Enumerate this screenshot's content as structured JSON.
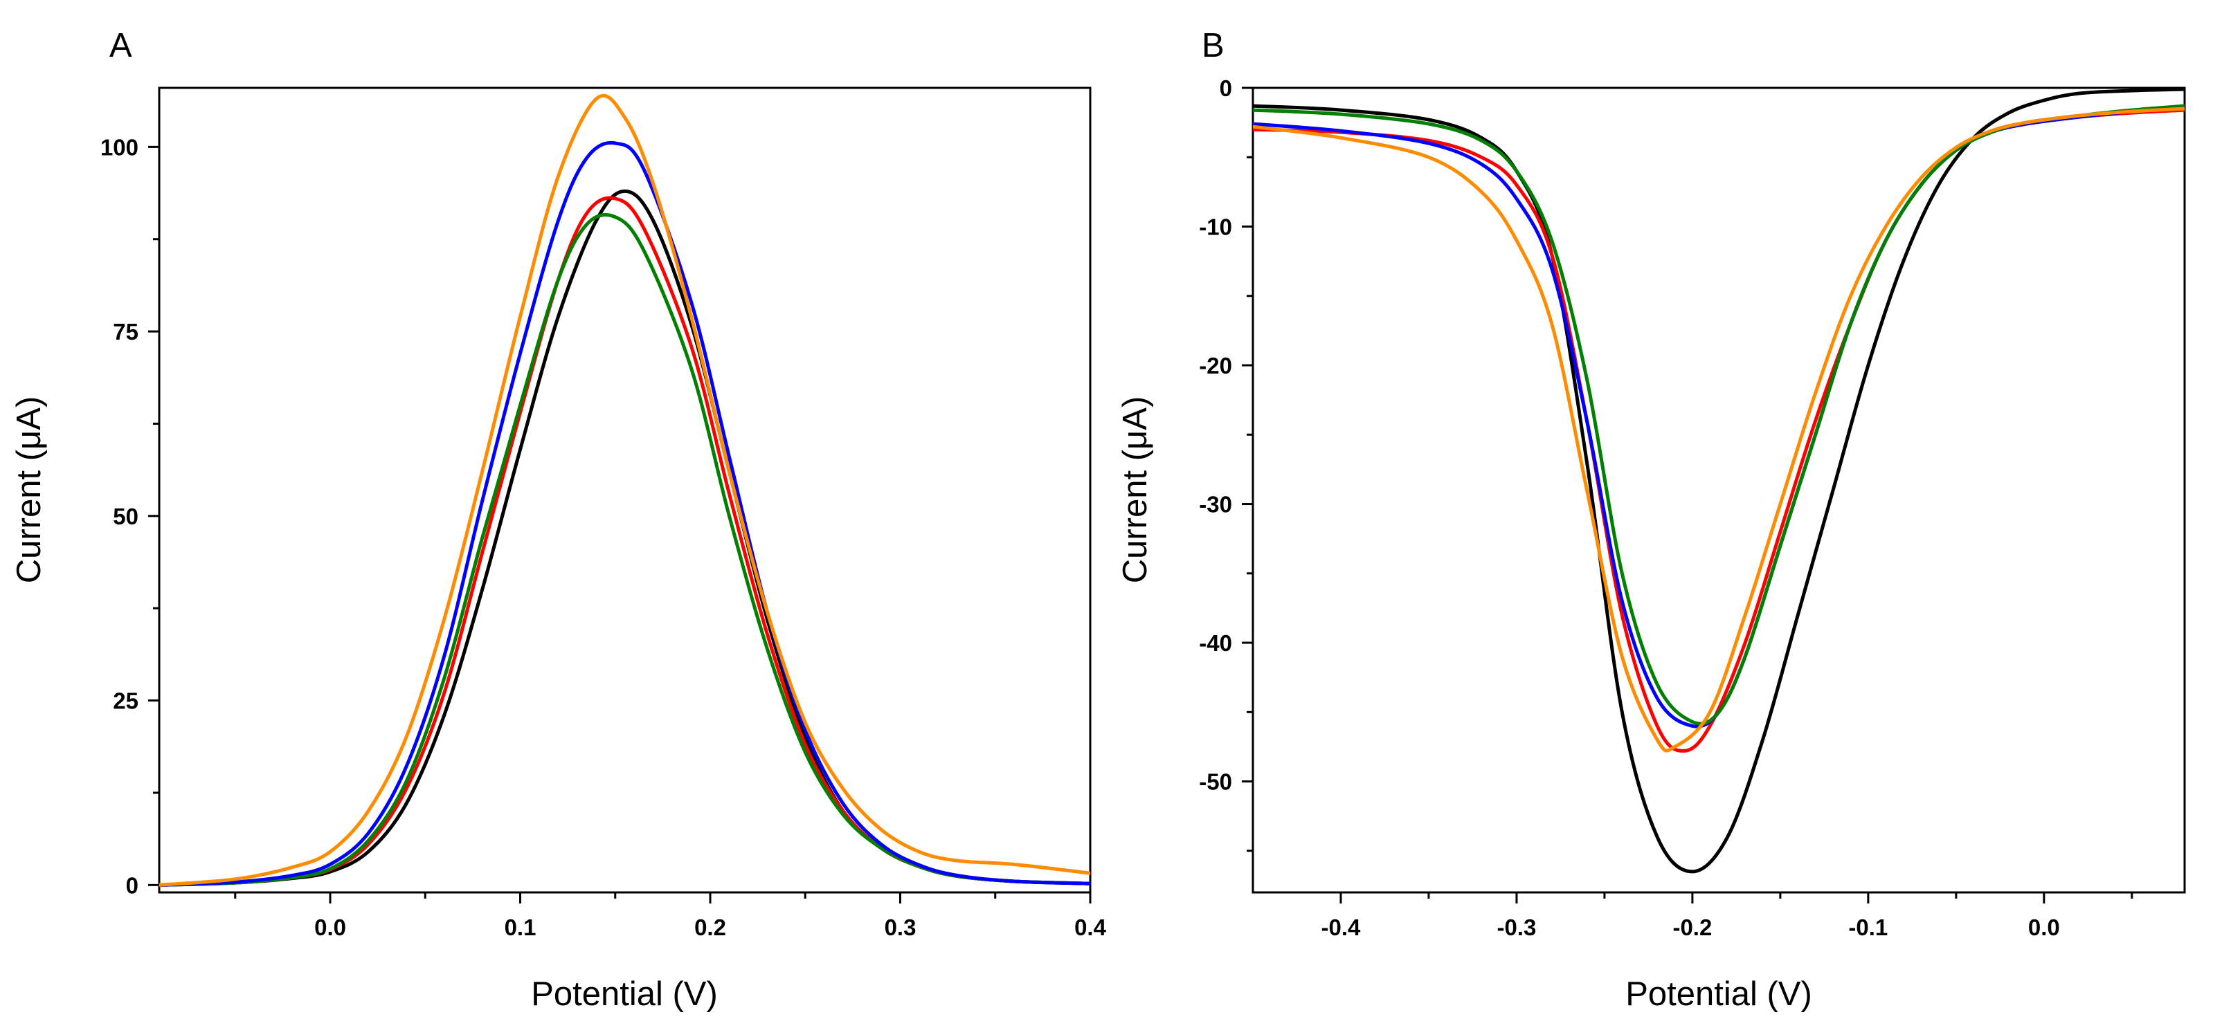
{
  "chart_data": [
    {
      "type": "line",
      "panel_label": "A",
      "xlabel": "Potential (V)",
      "ylabel": "Current (μA)",
      "xlim": [
        -0.09,
        0.4
      ],
      "ylim": [
        -1,
        108
      ],
      "xticks": [
        0.0,
        0.1,
        0.2,
        0.3,
        0.4
      ],
      "xtick_labels": [
        "0.0",
        "0.1",
        "0.2",
        "0.3",
        "0.4"
      ],
      "yticks": [
        0,
        25,
        50,
        75,
        100
      ],
      "ytick_labels": [
        "0",
        "25",
        "50",
        "75",
        "100"
      ],
      "grid": false,
      "series": [
        {
          "color": "#000000",
          "x": [
            -0.09,
            -0.05,
            -0.02,
            0.0,
            0.02,
            0.04,
            0.06,
            0.08,
            0.1,
            0.12,
            0.14,
            0.155,
            0.17,
            0.19,
            0.21,
            0.23,
            0.25,
            0.27,
            0.29,
            0.31,
            0.33,
            0.36,
            0.4
          ],
          "y": [
            0,
            0.3,
            0.9,
            1.8,
            4.5,
            11,
            23,
            40,
            59,
            77,
            90,
            94,
            90,
            76,
            56,
            36,
            20,
            10,
            5,
            2.5,
            1.2,
            0.5,
            0.2
          ]
        },
        {
          "color": "#ff0000",
          "x": [
            -0.09,
            -0.05,
            -0.02,
            0.0,
            0.02,
            0.04,
            0.06,
            0.08,
            0.1,
            0.12,
            0.135,
            0.15,
            0.165,
            0.19,
            0.21,
            0.23,
            0.25,
            0.27,
            0.29,
            0.31,
            0.33,
            0.36,
            0.4
          ],
          "y": [
            0,
            0.3,
            1,
            2.1,
            5.5,
            13,
            26,
            45,
            64,
            82,
            91,
            93,
            89,
            73,
            53,
            34,
            19,
            10,
            5,
            2.5,
            1.2,
            0.5,
            0.2
          ]
        },
        {
          "color": "#008000",
          "x": [
            -0.09,
            -0.05,
            -0.02,
            0.0,
            0.02,
            0.04,
            0.06,
            0.08,
            0.1,
            0.12,
            0.135,
            0.15,
            0.165,
            0.19,
            0.21,
            0.23,
            0.25,
            0.27,
            0.29,
            0.31,
            0.33,
            0.36,
            0.4
          ],
          "y": [
            0,
            0.3,
            1,
            2.2,
            6,
            14,
            28,
            47,
            65,
            82,
            89.5,
            90.5,
            86,
            70,
            50,
            32,
            18,
            9.5,
            5,
            2.5,
            1.2,
            0.5,
            0.2
          ]
        },
        {
          "color": "#0000ff",
          "x": [
            -0.09,
            -0.05,
            -0.02,
            0.0,
            0.02,
            0.04,
            0.06,
            0.08,
            0.1,
            0.12,
            0.135,
            0.15,
            0.165,
            0.19,
            0.21,
            0.23,
            0.25,
            0.27,
            0.29,
            0.31,
            0.33,
            0.36,
            0.4
          ],
          "y": [
            0,
            0.4,
            1.3,
            2.8,
            7,
            16,
            31,
            52,
            72,
            90,
            98.5,
            100.5,
            97,
            79,
            58,
            37,
            21,
            11,
            5.5,
            2.7,
            1.3,
            0.5,
            0.2
          ]
        },
        {
          "color": "#ff8c00",
          "x": [
            -0.09,
            -0.05,
            -0.02,
            0.0,
            0.02,
            0.04,
            0.06,
            0.08,
            0.1,
            0.12,
            0.14,
            0.155,
            0.17,
            0.19,
            0.21,
            0.23,
            0.25,
            0.27,
            0.29,
            0.31,
            0.33,
            0.36,
            0.4
          ],
          "y": [
            0,
            0.8,
            2.4,
            4.5,
            10,
            20,
            36,
            56,
            77,
            96,
            106.5,
            104,
            95,
            77,
            56,
            37,
            22,
            13,
            7.5,
            4.5,
            3.3,
            2.8,
            1.6
          ]
        }
      ]
    },
    {
      "type": "line",
      "panel_label": "B",
      "xlabel": "Potential (V)",
      "ylabel": "Current (μA)",
      "xlim": [
        -0.45,
        0.08
      ],
      "ylim": [
        -58,
        0
      ],
      "xticks": [
        -0.4,
        -0.3,
        -0.2,
        -0.1,
        0.0
      ],
      "xtick_labels": [
        "-0.4",
        "-0.3",
        "-0.2",
        "-0.1",
        "0.0"
      ],
      "yticks": [
        0,
        -10,
        -20,
        -30,
        -40,
        -50
      ],
      "ytick_labels": [
        "0",
        "-10",
        "-20",
        "-30",
        "-40",
        "-50"
      ],
      "grid": false,
      "series": [
        {
          "color": "#000000",
          "x": [
            -0.45,
            -0.4,
            -0.35,
            -0.32,
            -0.3,
            -0.28,
            -0.26,
            -0.24,
            -0.22,
            -0.2,
            -0.18,
            -0.16,
            -0.14,
            -0.12,
            -0.1,
            -0.08,
            -0.06,
            -0.04,
            -0.02,
            0.0,
            0.02,
            0.05,
            0.08
          ],
          "y": [
            -1.3,
            -1.6,
            -2.3,
            -3.6,
            -6,
            -12,
            -27,
            -45,
            -54,
            -56.5,
            -54,
            -47,
            -38,
            -29,
            -20,
            -12.5,
            -7,
            -3.6,
            -1.8,
            -0.9,
            -0.4,
            -0.2,
            -0.1
          ]
        },
        {
          "color": "#ff0000",
          "x": [
            -0.45,
            -0.4,
            -0.35,
            -0.32,
            -0.3,
            -0.28,
            -0.26,
            -0.24,
            -0.22,
            -0.205,
            -0.19,
            -0.17,
            -0.15,
            -0.13,
            -0.11,
            -0.09,
            -0.07,
            -0.05,
            -0.03,
            -0.01,
            0.02,
            0.05,
            0.08
          ],
          "y": [
            -3,
            -3.2,
            -3.8,
            -5,
            -7,
            -12,
            -24,
            -38,
            -46,
            -47.8,
            -46,
            -40,
            -32,
            -24,
            -17,
            -11,
            -7,
            -4.5,
            -3.2,
            -2.6,
            -2.1,
            -1.8,
            -1.6
          ]
        },
        {
          "color": "#0000ff",
          "x": [
            -0.45,
            -0.4,
            -0.35,
            -0.32,
            -0.3,
            -0.28,
            -0.26,
            -0.24,
            -0.22,
            -0.2,
            -0.185,
            -0.17,
            -0.15,
            -0.13,
            -0.11,
            -0.09,
            -0.07,
            -0.05,
            -0.03,
            -0.01,
            0.02,
            0.05,
            0.08
          ],
          "y": [
            -2.6,
            -3.1,
            -4,
            -5.5,
            -8,
            -13,
            -24,
            -37,
            -44,
            -46,
            -45,
            -41,
            -33,
            -25,
            -17,
            -11,
            -7,
            -4.5,
            -3.2,
            -2.6,
            -2.1,
            -1.7,
            -1.4
          ]
        },
        {
          "color": "#008000",
          "x": [
            -0.45,
            -0.4,
            -0.35,
            -0.32,
            -0.3,
            -0.28,
            -0.26,
            -0.24,
            -0.22,
            -0.2,
            -0.185,
            -0.17,
            -0.15,
            -0.13,
            -0.11,
            -0.09,
            -0.07,
            -0.05,
            -0.03,
            -0.01,
            0.02,
            0.05,
            0.08
          ],
          "y": [
            -1.6,
            -1.9,
            -2.6,
            -3.8,
            -6,
            -11,
            -21,
            -35,
            -43,
            -45.7,
            -45,
            -41,
            -33,
            -25,
            -17,
            -11,
            -7,
            -4.5,
            -3.2,
            -2.5,
            -2,
            -1.6,
            -1.3
          ]
        },
        {
          "color": "#ff8c00",
          "x": [
            -0.45,
            -0.4,
            -0.35,
            -0.32,
            -0.3,
            -0.28,
            -0.26,
            -0.24,
            -0.22,
            -0.21,
            -0.19,
            -0.17,
            -0.15,
            -0.13,
            -0.11,
            -0.09,
            -0.07,
            -0.05,
            -0.03,
            -0.01,
            0.02,
            0.05,
            0.08
          ],
          "y": [
            -2.8,
            -3.6,
            -5,
            -7.5,
            -11,
            -17,
            -29,
            -41,
            -47,
            -47.5,
            -45,
            -38,
            -30,
            -22,
            -15,
            -10,
            -6.5,
            -4.3,
            -3.1,
            -2.5,
            -2,
            -1.7,
            -1.5
          ]
        }
      ]
    }
  ]
}
